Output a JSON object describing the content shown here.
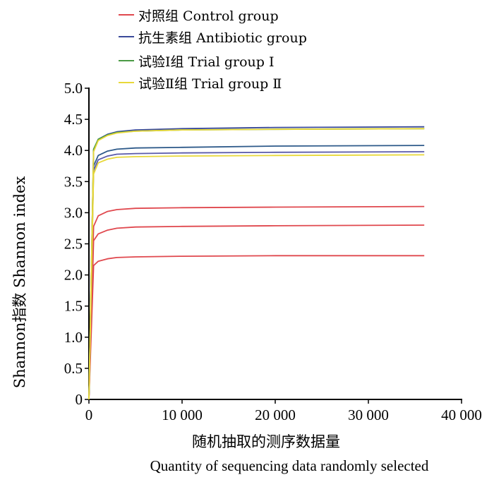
{
  "chart_data": {
    "type": "line",
    "title": "",
    "xlabel": "随机抽取的测序数据量",
    "xlabel_en": "Quantity of sequencing data randomly selected",
    "ylabel": "Shannon指数 Shannon index",
    "xlim": [
      0,
      40000
    ],
    "ylim": [
      0,
      5.0
    ],
    "x_ticks": [
      0,
      10000,
      20000,
      30000,
      40000
    ],
    "x_tick_labels": [
      "0",
      "10 000",
      "20 000",
      "30 000",
      "40 000"
    ],
    "y_ticks": [
      0,
      0.5,
      1.0,
      1.5,
      2.0,
      2.5,
      3.0,
      3.5,
      4.0,
      4.5,
      5.0
    ],
    "y_tick_labels": [
      "0",
      "0.5",
      "1.0",
      "1.5",
      "2.0",
      "2.5",
      "3.0",
      "3.5",
      "4.0",
      "4.5",
      "5.0"
    ],
    "grid": false,
    "legend_position": "top",
    "legend": [
      {
        "label": "对照组 Control group",
        "color": "#e0484e"
      },
      {
        "label": "抗生素组 Antibiotic group",
        "color": "#3a4a9a"
      },
      {
        "label": "试验Ⅰ组 Trial group Ⅰ",
        "color": "#4a9a44"
      },
      {
        "label": "试验Ⅱ组 Trial group Ⅱ",
        "color": "#e8d83a"
      }
    ],
    "series": [
      {
        "group": "对照组 Control group",
        "color": "#e0484e",
        "x": [
          0,
          500,
          1000,
          2000,
          3000,
          5000,
          10000,
          20000,
          36000
        ],
        "y": [
          0,
          2.78,
          2.95,
          3.02,
          3.05,
          3.07,
          3.08,
          3.09,
          3.1
        ]
      },
      {
        "group": "对照组 Control group",
        "color": "#e0484e",
        "x": [
          0,
          500,
          1000,
          2000,
          3000,
          5000,
          10000,
          20000,
          36000
        ],
        "y": [
          0,
          2.55,
          2.66,
          2.72,
          2.75,
          2.77,
          2.78,
          2.79,
          2.8
        ]
      },
      {
        "group": "对照组 Control group",
        "color": "#e0484e",
        "x": [
          0,
          500,
          1000,
          2000,
          3000,
          5000,
          10000,
          20000,
          36000
        ],
        "y": [
          0,
          2.15,
          2.22,
          2.26,
          2.28,
          2.29,
          2.3,
          2.31,
          2.31
        ]
      },
      {
        "group": "抗生素组 Antibiotic group",
        "color": "#3a4a9a",
        "x": [
          0,
          500,
          1000,
          2000,
          3000,
          5000,
          10000,
          20000,
          36000
        ],
        "y": [
          0,
          4.0,
          4.18,
          4.26,
          4.3,
          4.33,
          4.35,
          4.37,
          4.38
        ]
      },
      {
        "group": "抗生素组 Antibiotic group",
        "color": "#2e5a8a",
        "x": [
          0,
          500,
          1000,
          2000,
          3000,
          5000,
          10000,
          20000,
          36000
        ],
        "y": [
          0,
          3.75,
          3.92,
          3.99,
          4.02,
          4.04,
          4.05,
          4.07,
          4.08
        ]
      },
      {
        "group": "抗生素组 Antibiotic group",
        "color": "#5a5aaa",
        "x": [
          0,
          500,
          1000,
          2000,
          3000,
          5000,
          10000,
          20000,
          36000
        ],
        "y": [
          0,
          3.68,
          3.85,
          3.91,
          3.94,
          3.95,
          3.96,
          3.97,
          3.98
        ]
      },
      {
        "group": "试验Ⅰ组 Trial group Ⅰ",
        "color": "#4a9a44",
        "x": [
          0,
          500,
          1000,
          2000,
          3000,
          5000,
          10000,
          20000,
          36000
        ],
        "y": [
          0,
          4.02,
          4.18,
          4.25,
          4.29,
          4.31,
          4.33,
          4.34,
          4.35
        ]
      },
      {
        "group": "试验Ⅱ组 Trial group Ⅱ",
        "color": "#e8d83a",
        "x": [
          0,
          500,
          1000,
          2000,
          3000,
          5000,
          10000,
          20000,
          36000
        ],
        "y": [
          0,
          3.98,
          4.16,
          4.24,
          4.28,
          4.31,
          4.33,
          4.34,
          4.35
        ]
      },
      {
        "group": "试验Ⅱ组 Trial group Ⅱ",
        "color": "#e8d83a",
        "x": [
          0,
          500,
          1000,
          2000,
          3000,
          5000,
          10000,
          20000,
          36000
        ],
        "y": [
          0,
          3.62,
          3.8,
          3.86,
          3.89,
          3.9,
          3.91,
          3.92,
          3.93
        ]
      }
    ]
  }
}
